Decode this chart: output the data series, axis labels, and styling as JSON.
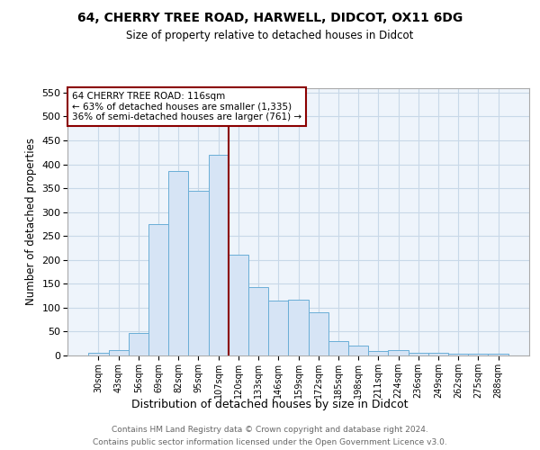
{
  "title1": "64, CHERRY TREE ROAD, HARWELL, DIDCOT, OX11 6DG",
  "title2": "Size of property relative to detached houses in Didcot",
  "xlabel": "Distribution of detached houses by size in Didcot",
  "ylabel": "Number of detached properties",
  "footer1": "Contains HM Land Registry data © Crown copyright and database right 2024.",
  "footer2": "Contains public sector information licensed under the Open Government Licence v3.0.",
  "annotation_line1": "64 CHERRY TREE ROAD: 116sqm",
  "annotation_line2": "← 63% of detached houses are smaller (1,335)",
  "annotation_line3": "36% of semi-detached houses are larger (761) →",
  "bar_labels": [
    "30sqm",
    "43sqm",
    "56sqm",
    "69sqm",
    "82sqm",
    "95sqm",
    "107sqm",
    "120sqm",
    "133sqm",
    "146sqm",
    "159sqm",
    "172sqm",
    "185sqm",
    "198sqm",
    "211sqm",
    "224sqm",
    "236sqm",
    "249sqm",
    "262sqm",
    "275sqm",
    "288sqm"
  ],
  "bar_values": [
    5,
    12,
    48,
    275,
    385,
    345,
    420,
    210,
    143,
    115,
    117,
    90,
    30,
    20,
    10,
    12,
    5,
    5,
    3,
    3,
    4
  ],
  "bar_color": "#d6e4f5",
  "bar_edge_color": "#6aaed6",
  "marker_color": "#8b0000",
  "ylim": [
    0,
    560
  ],
  "yticks": [
    0,
    50,
    100,
    150,
    200,
    250,
    300,
    350,
    400,
    450,
    500,
    550
  ],
  "annotation_box_color": "#ffffff",
  "annotation_box_edge": "#8b0000",
  "grid_color": "#c8d8e8",
  "background_color": "#ffffff",
  "ax_background": "#eef4fb"
}
